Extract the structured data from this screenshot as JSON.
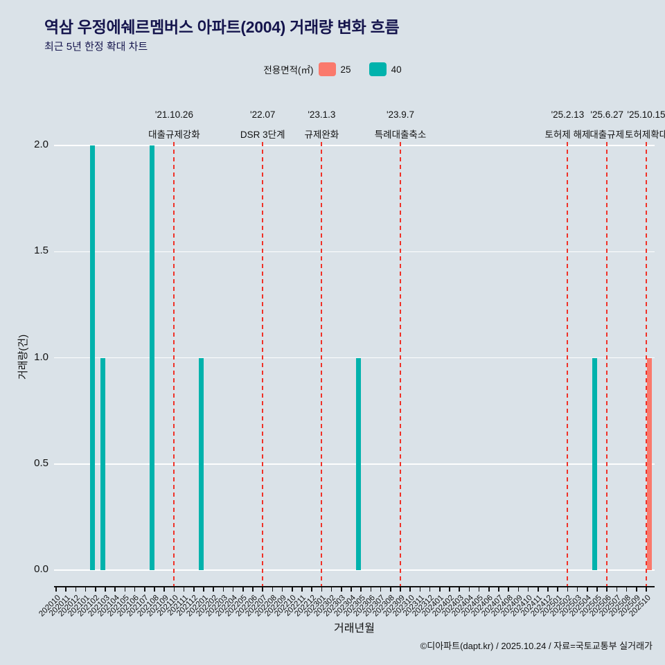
{
  "title": "역삼 우정에쉐르멤버스 아파트(2004) 거래량 변화 흐름",
  "subtitle": "최근 5년 한정 확대 차트",
  "legend": {
    "label": "전용면적(㎡)",
    "items": [
      {
        "name": "25",
        "color": "#fa796c"
      },
      {
        "name": "40",
        "color": "#00b2ac"
      }
    ]
  },
  "footer": "©디아파트(dapt.kr) / 2025.10.24 / 자료=국토교통부 실거래가",
  "chart_data": {
    "type": "bar",
    "title": "역삼 우정에쉐르멤버스 아파트(2004) 거래량 변화 흐름",
    "subtitle": "최근 5년 한정 확대 차트",
    "xlabel": "거래년월",
    "ylabel": "거래량(건)",
    "ylim": [
      0,
      2.0
    ],
    "grid": true,
    "legend_position": "top-center",
    "event_line_color": "#f03127",
    "yticks": [
      {
        "value": 0.0,
        "label": "0.0"
      },
      {
        "value": 0.5,
        "label": "0.5"
      },
      {
        "value": 1.0,
        "label": "1.0"
      },
      {
        "value": 1.5,
        "label": "1.5"
      },
      {
        "value": 2.0,
        "label": "2.0"
      }
    ],
    "categories": [
      "202010",
      "202011",
      "202012",
      "202101",
      "202102",
      "202103",
      "202104",
      "202105",
      "202106",
      "202107",
      "202108",
      "202109",
      "202110",
      "202111",
      "202112",
      "202201",
      "202202",
      "202203",
      "202204",
      "202205",
      "202206",
      "202207",
      "202208",
      "202209",
      "202210",
      "202211",
      "202212",
      "202301",
      "202302",
      "202303",
      "202304",
      "202305",
      "202306",
      "202307",
      "202308",
      "202309",
      "202310",
      "202311",
      "202312",
      "202401",
      "202402",
      "202403",
      "202404",
      "202405",
      "202406",
      "202407",
      "202408",
      "202409",
      "202410",
      "202411",
      "202412",
      "202501",
      "202502",
      "202503",
      "202504",
      "202505",
      "202506",
      "202507",
      "202508",
      "202509",
      "202510"
    ],
    "series": [
      {
        "name": "25",
        "color": "#fa796c",
        "points": [
          {
            "month": "202510",
            "value": 1
          }
        ]
      },
      {
        "name": "40",
        "color": "#00b2ac",
        "points": [
          {
            "month": "202102",
            "value": 2
          },
          {
            "month": "202103",
            "value": 1
          },
          {
            "month": "202108",
            "value": 2
          },
          {
            "month": "202201",
            "value": 1
          },
          {
            "month": "202305",
            "value": 1
          },
          {
            "month": "202505",
            "value": 1
          }
        ]
      }
    ],
    "events": [
      {
        "month": "202110",
        "date": "'21.10.26",
        "label": "대출규제강화"
      },
      {
        "month": "202207",
        "date": "'22.07",
        "label": "DSR 3단계"
      },
      {
        "month": "202301",
        "date": "'23.1.3",
        "label": "규제완화"
      },
      {
        "month": "202309",
        "date": "'23.9.7",
        "label": "특례대출축소"
      },
      {
        "month": "202502",
        "date": "'25.2.13",
        "label": "토허제 해제"
      },
      {
        "month": "202506",
        "date": "'25.6.27",
        "label": "대출규제"
      },
      {
        "month": "202510",
        "date": "'25.10.15",
        "label": "토허제확대"
      }
    ]
  }
}
